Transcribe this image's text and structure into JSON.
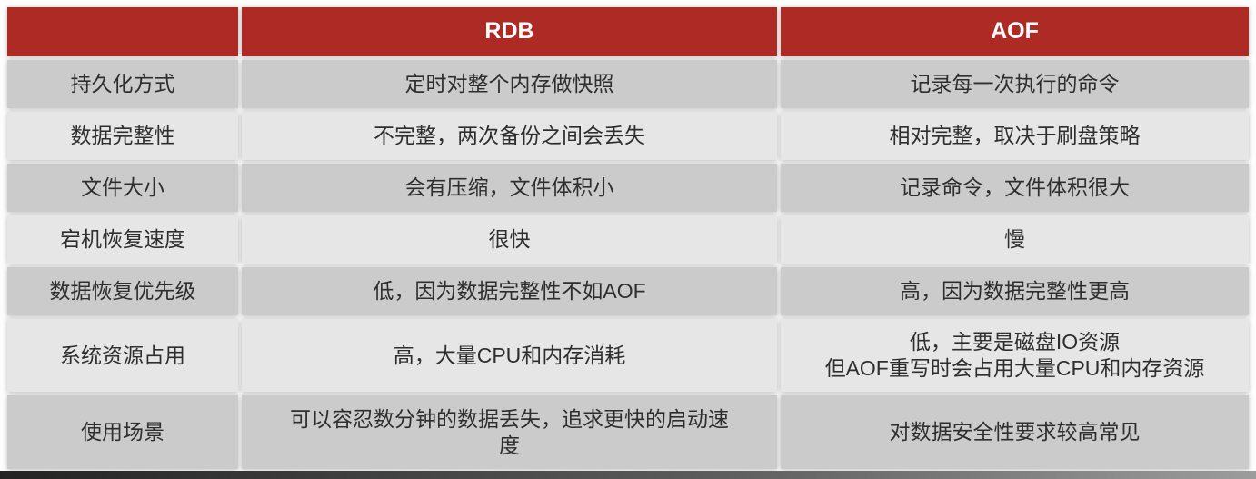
{
  "table": {
    "title_note": "RDB vs AOF persistence comparison table",
    "colors": {
      "header_bg": "#ae2a25",
      "header_text": "#ffffff",
      "row_dark_bg": "#cbcbcb",
      "row_light_bg": "#e6e6e6",
      "cell_text": "#2e2e2e",
      "border": "#ffffff"
    },
    "header": {
      "col_label": "",
      "col_rdb": "RDB",
      "col_aof": "AOF"
    },
    "rows": [
      {
        "label": "持久化方式",
        "rdb": "定时对整个内存做快照",
        "aof": "记录每一次执行的命令"
      },
      {
        "label": "数据完整性",
        "rdb": "不完整，两次备份之间会丢失",
        "aof": "相对完整，取决于刷盘策略"
      },
      {
        "label": "文件大小",
        "rdb": "会有压缩，文件体积小",
        "aof": "记录命令，文件体积很大"
      },
      {
        "label": "宕机恢复速度",
        "rdb": "很快",
        "aof": "慢"
      },
      {
        "label": "数据恢复优先级",
        "rdb": "低，因为数据完整性不如AOF",
        "aof": "高，因为数据完整性更高"
      },
      {
        "label": "系统资源占用",
        "rdb": "高，大量CPU和内存消耗",
        "aof": "低，主要是磁盘IO资源\n但AOF重写时会占用大量CPU和内存资源"
      },
      {
        "label": "使用场景",
        "rdb": "可以容忍数分钟的数据丢失，追求更快的启动速\n度",
        "aof": "对数据安全性要求较高常见"
      }
    ]
  }
}
